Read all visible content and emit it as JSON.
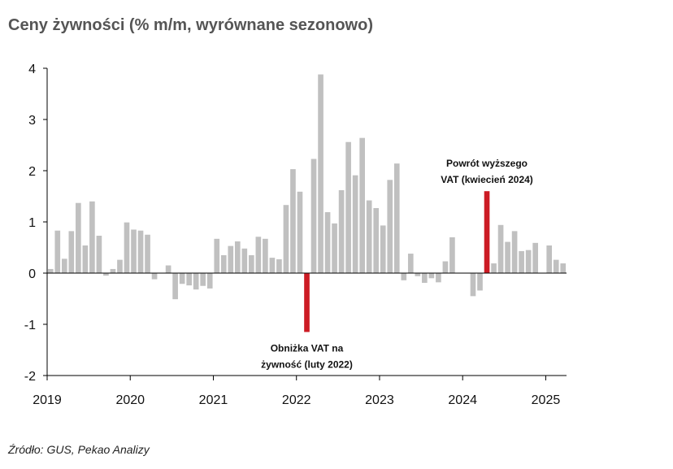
{
  "chart_data": {
    "type": "bar",
    "title": "Ceny żywności (% m/m, wyrównane sezonowo)",
    "source": "Źródło: GUS, Pekao Analizy",
    "ylim": [
      -2,
      4
    ],
    "yticks": [
      4,
      3,
      2,
      1,
      0,
      -1,
      -2
    ],
    "year_labels": [
      "2019",
      "2020",
      "2021",
      "2022",
      "2023",
      "2024",
      "2025"
    ],
    "start": "2019-01",
    "x": [
      "2019-01",
      "2019-02",
      "2019-03",
      "2019-04",
      "2019-05",
      "2019-06",
      "2019-07",
      "2019-08",
      "2019-09",
      "2019-10",
      "2019-11",
      "2019-12",
      "2020-01",
      "2020-02",
      "2020-03",
      "2020-04",
      "2020-05",
      "2020-06",
      "2020-07",
      "2020-08",
      "2020-09",
      "2020-10",
      "2020-11",
      "2020-12",
      "2021-01",
      "2021-02",
      "2021-03",
      "2021-04",
      "2021-05",
      "2021-06",
      "2021-07",
      "2021-08",
      "2021-09",
      "2021-10",
      "2021-11",
      "2021-12",
      "2022-01",
      "2022-02",
      "2022-03",
      "2022-04",
      "2022-05",
      "2022-06",
      "2022-07",
      "2022-08",
      "2022-09",
      "2022-10",
      "2022-11",
      "2022-12",
      "2023-01",
      "2023-02",
      "2023-03",
      "2023-04",
      "2023-05",
      "2023-06",
      "2023-07",
      "2023-08",
      "2023-09",
      "2023-10",
      "2023-11",
      "2023-12",
      "2024-01",
      "2024-02",
      "2024-03",
      "2024-04",
      "2024-05",
      "2024-06",
      "2024-07",
      "2024-08",
      "2024-09",
      "2024-10",
      "2024-11",
      "2024-12",
      "2025-01",
      "2025-02",
      "2025-03"
    ],
    "values": [
      0.08,
      0.83,
      0.28,
      0.82,
      1.37,
      0.54,
      1.4,
      0.73,
      -0.05,
      0.08,
      0.26,
      0.99,
      0.85,
      0.83,
      0.75,
      -0.12,
      0.0,
      0.15,
      -0.51,
      -0.21,
      -0.24,
      -0.32,
      -0.25,
      -0.3,
      0.67,
      0.35,
      0.53,
      0.62,
      0.48,
      0.35,
      0.71,
      0.67,
      0.3,
      0.27,
      1.33,
      2.03,
      1.59,
      -1.15,
      2.23,
      3.88,
      1.19,
      0.97,
      1.62,
      2.56,
      1.91,
      2.64,
      1.42,
      1.27,
      0.93,
      1.82,
      2.14,
      -0.14,
      0.38,
      -0.06,
      -0.19,
      -0.1,
      -0.18,
      0.23,
      0.7,
      0.0,
      0.0,
      -0.45,
      -0.34,
      1.6,
      0.19,
      0.94,
      0.61,
      0.82,
      0.43,
      0.45,
      0.59,
      0.0,
      0.54,
      0.26,
      0.19
    ],
    "highlighted_indices": [
      37,
      63
    ],
    "colors": {
      "bar": "#c0c0c0",
      "highlight": "#cc1b24",
      "axis": "#000000"
    },
    "annotations": [
      {
        "lines": [
          "Obniżka VAT na",
          "żywność (luty 2022)"
        ],
        "target_index": 37
      },
      {
        "lines": [
          "Powrót wyższego",
          "VAT (kwiecień 2024)"
        ],
        "target_index": 63
      }
    ]
  }
}
